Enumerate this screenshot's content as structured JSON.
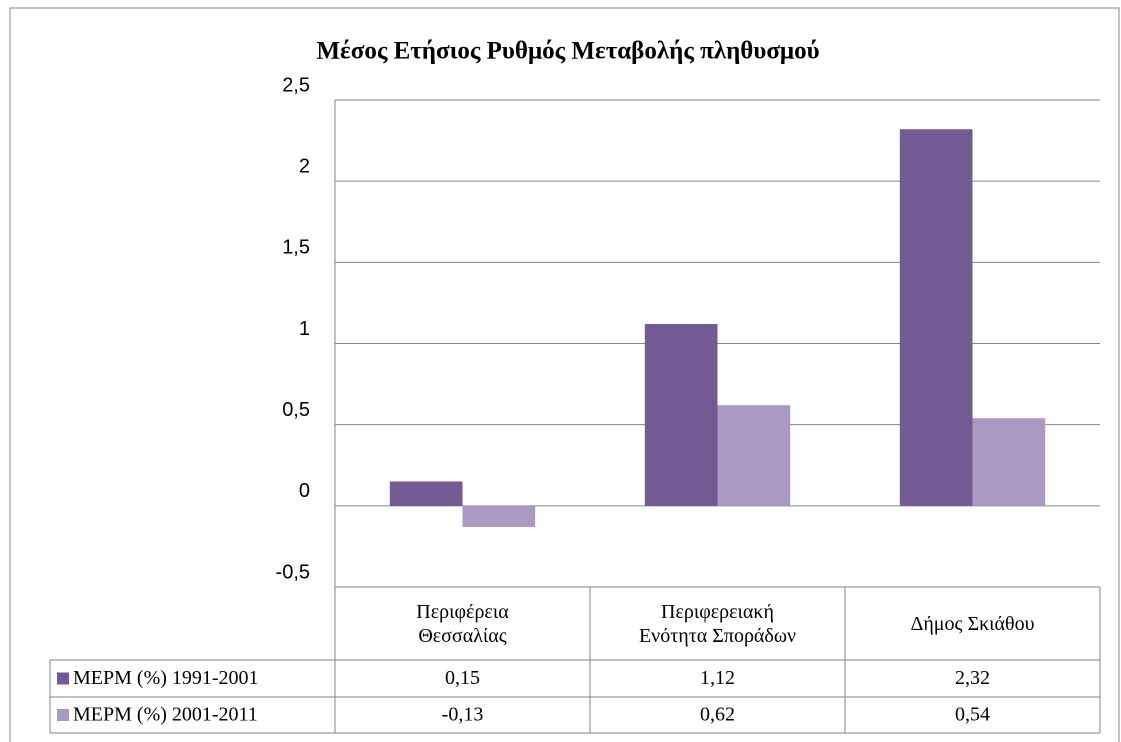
{
  "chart_data": {
    "type": "bar",
    "title": "Μέσος Ετήσιος Ρυθμός Μεταβολής πληθυσμού",
    "categories": [
      "Περιφέρεια Θεσσαλίας",
      "Περιφερειακή Ενότητα Σποράδων",
      "Δήμος Σκιάθου"
    ],
    "series": [
      {
        "name": "ΜΕΡΜ (%) 1991-2001",
        "color": "#735a92",
        "values": [
          0.15,
          1.12,
          2.32
        ],
        "value_labels": [
          "0,15",
          "1,12",
          "2,32"
        ]
      },
      {
        "name": "ΜΕΡΜ (%) 2001-2011",
        "color": "#aa9ac2",
        "values": [
          -0.13,
          0.62,
          0.54
        ],
        "value_labels": [
          "-0,13",
          "0,62",
          "0,54"
        ]
      }
    ],
    "ylim": [
      -0.5,
      2.5
    ],
    "yticks": [
      {
        "value": -0.5,
        "label": "-0,5"
      },
      0,
      {
        "value": 0.5,
        "label": "0,5"
      },
      1,
      {
        "value": 1.5,
        "label": "1,5"
      },
      2,
      {
        "value": 2.5,
        "label": "2,5"
      }
    ],
    "grid": true
  }
}
